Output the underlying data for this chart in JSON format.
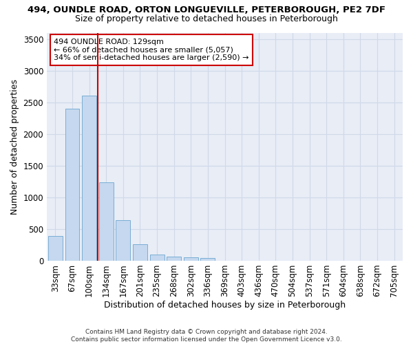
{
  "title_line1": "494, OUNDLE ROAD, ORTON LONGUEVILLE, PETERBOROUGH, PE2 7DF",
  "title_line2": "Size of property relative to detached houses in Peterborough",
  "xlabel": "Distribution of detached houses by size in Peterborough",
  "ylabel": "Number of detached properties",
  "categories": [
    "33sqm",
    "67sqm",
    "100sqm",
    "134sqm",
    "167sqm",
    "201sqm",
    "235sqm",
    "268sqm",
    "302sqm",
    "336sqm",
    "369sqm",
    "403sqm",
    "436sqm",
    "470sqm",
    "504sqm",
    "537sqm",
    "571sqm",
    "604sqm",
    "638sqm",
    "672sqm",
    "705sqm"
  ],
  "values": [
    390,
    2400,
    2610,
    1240,
    640,
    255,
    100,
    60,
    55,
    45,
    0,
    0,
    0,
    0,
    0,
    0,
    0,
    0,
    0,
    0,
    0
  ],
  "bar_color": "#c5d8ef",
  "bar_edge_color": "#7aadd4",
  "vline_color": "#cc0000",
  "annotation_text": "494 OUNDLE ROAD: 129sqm\n← 66% of detached houses are smaller (5,057)\n34% of semi-detached houses are larger (2,590) →",
  "annotation_box_color": "#ffffff",
  "annotation_box_edge": "#cc0000",
  "ylim": [
    0,
    3600
  ],
  "yticks": [
    0,
    500,
    1000,
    1500,
    2000,
    2500,
    3000,
    3500
  ],
  "background_color": "#e8edf6",
  "grid_color": "#d0d8e8",
  "footer": "Contains HM Land Registry data © Crown copyright and database right 2024.\nContains public sector information licensed under the Open Government Licence v3.0.",
  "title_fontsize": 9.5,
  "subtitle_fontsize": 9,
  "xlabel_fontsize": 9,
  "ylabel_fontsize": 9,
  "tick_fontsize": 8.5,
  "annotation_fontsize": 8
}
